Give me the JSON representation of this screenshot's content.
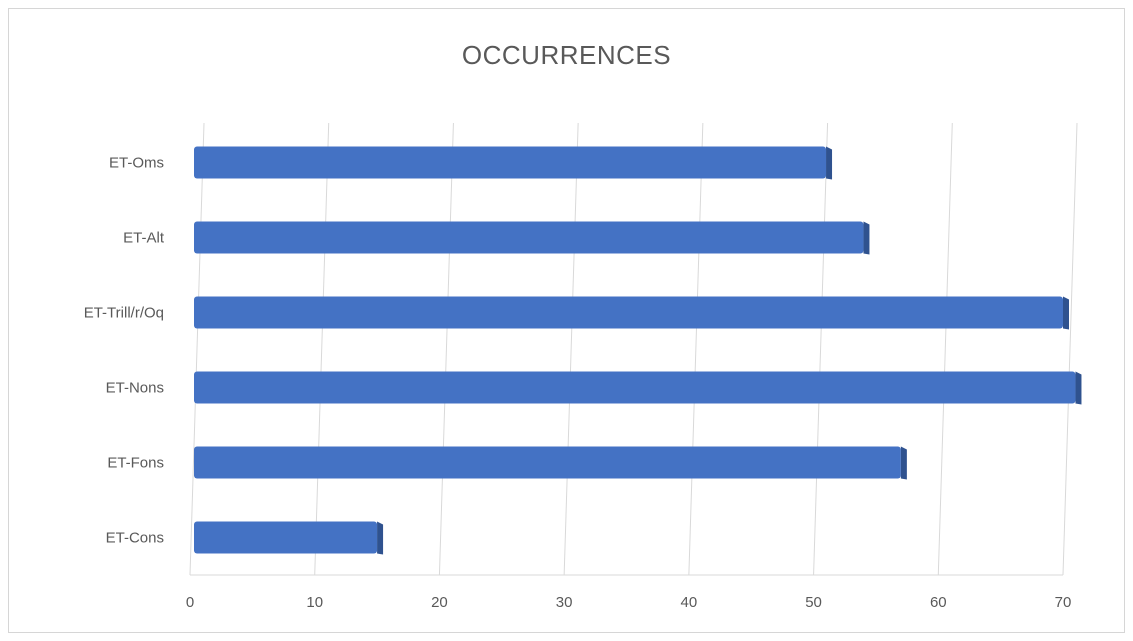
{
  "chart_data": {
    "type": "bar",
    "orientation": "horizontal",
    "title": "OCCURRENCES",
    "categories": [
      "ET-Cons",
      "ET-Fons",
      "ET-Nons",
      "ET-Trill/r/Oq",
      "ET-Alt",
      "ET-Oms"
    ],
    "values": [
      15,
      57,
      71,
      70,
      54,
      51
    ],
    "xlabel": "",
    "ylabel": "",
    "xlim": [
      0,
      70
    ],
    "xticks": [
      0,
      10,
      20,
      30,
      40,
      50,
      60,
      70
    ],
    "grid": true,
    "legend": "none",
    "bar_color": "#4472c4",
    "bar_shadow_color": "#2f528f"
  }
}
